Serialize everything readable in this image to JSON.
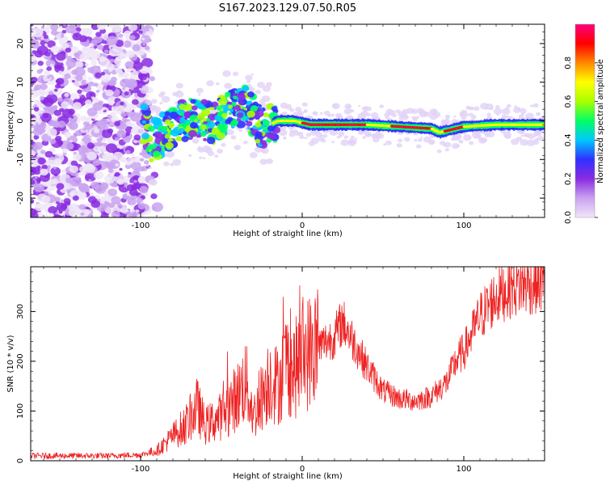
{
  "title": "S167.2023.129.07.50.R05",
  "chart_data": [
    {
      "type": "heatmap",
      "name": "spectrogram",
      "xlabel": "Height of straight line (km)",
      "ylabel": "Frequency (Hz)",
      "xlim": [
        -168,
        150
      ],
      "ylim": [
        -25,
        25
      ],
      "xticks": [
        -100,
        0,
        100
      ],
      "yticks": [
        -20,
        -10,
        0,
        10,
        20
      ],
      "colorbar": {
        "label": "Normalized spectral amplitude",
        "range": [
          0,
          1
        ],
        "ticks": [
          "0.0",
          "0.2",
          "0.4",
          "0.6",
          "0.8"
        ],
        "colors": [
          "#f0e6f8",
          "#c9a3f0",
          "#8a2be2",
          "#3030ff",
          "#00c8ff",
          "#00ff66",
          "#a8ff00",
          "#ffff00",
          "#ff8800",
          "#ff0000",
          "#ff0080"
        ]
      },
      "signal_center_hz": [
        [
          -95,
          -6
        ],
        [
          -85,
          -3
        ],
        [
          -75,
          0
        ],
        [
          -65,
          1
        ],
        [
          -55,
          -1
        ],
        [
          -45,
          3
        ],
        [
          -35,
          4
        ],
        [
          -25,
          -2
        ],
        [
          -15,
          0
        ],
        [
          -5,
          0
        ],
        [
          5,
          -1
        ],
        [
          20,
          -1
        ],
        [
          40,
          -1
        ],
        [
          60,
          -1.5
        ],
        [
          80,
          -2
        ],
        [
          85,
          -3
        ],
        [
          100,
          -1.5
        ],
        [
          120,
          -1
        ],
        [
          150,
          -1
        ]
      ]
    },
    {
      "type": "line",
      "name": "snr",
      "xlabel": "Height of straight line (km)",
      "ylabel": "SNR (10 * v/v)",
      "xlim": [
        -168,
        150
      ],
      "ylim": [
        0,
        390
      ],
      "xticks": [
        -100,
        0,
        100
      ],
      "yticks": [
        0,
        100,
        200,
        300
      ],
      "color": "#ee2222",
      "envelope": {
        "x": [
          -168,
          -120,
          -100,
          -90,
          -80,
          -70,
          -65,
          -60,
          -50,
          -40,
          -35,
          -30,
          -25,
          -20,
          -15,
          -10,
          -5,
          0,
          10,
          20,
          25,
          30,
          40,
          50,
          60,
          70,
          80,
          90,
          95,
          100,
          110,
          120,
          130,
          140,
          150
        ],
        "y": [
          10,
          10,
          12,
          20,
          50,
          80,
          110,
          70,
          90,
          130,
          160,
          90,
          130,
          170,
          150,
          200,
          180,
          210,
          230,
          250,
          280,
          250,
          190,
          140,
          125,
          120,
          130,
          160,
          200,
          220,
          290,
          330,
          350,
          355,
          360
        ]
      }
    }
  ]
}
